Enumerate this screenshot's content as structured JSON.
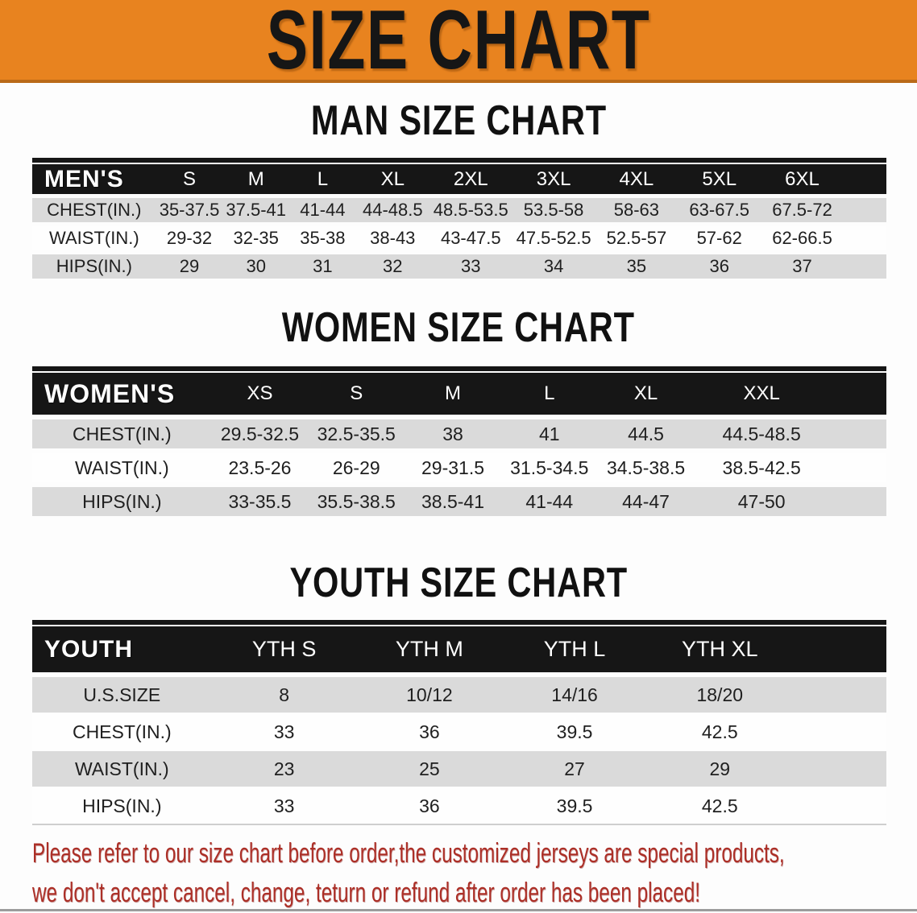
{
  "banner": {
    "title": "SIZE CHART"
  },
  "sections": [
    {
      "heading": "MAN SIZE CHART",
      "table": {
        "header": {
          "label": "MEN'S",
          "columns": [
            "S",
            "M",
            "L",
            "XL",
            "2XL",
            "3XL",
            "4XL",
            "5XL",
            "6XL"
          ]
        },
        "rows": [
          {
            "label": "CHEST(IN.)",
            "shaded": true,
            "values": [
              "35-37.5",
              "37.5-41",
              "41-44",
              "44-48.5",
              "48.5-53.5",
              "53.5-58",
              "58-63",
              "63-67.5",
              "67.5-72"
            ]
          },
          {
            "label": "WAIST(IN.)",
            "shaded": false,
            "values": [
              "29-32",
              "32-35",
              "35-38",
              "38-43",
              "43-47.5",
              "47.5-52.5",
              "52.5-57",
              "57-62",
              "62-66.5"
            ]
          },
          {
            "label": "HIPS(IN.)",
            "shaded": true,
            "values": [
              "29",
              "30",
              "31",
              "32",
              "33",
              "34",
              "35",
              "36",
              "37"
            ]
          }
        ]
      }
    },
    {
      "heading": "WOMEN SIZE CHART",
      "table": {
        "header": {
          "label": "WOMEN'S",
          "columns": [
            "XS",
            "S",
            "M",
            "L",
            "XL",
            "XXL"
          ]
        },
        "rows": [
          {
            "label": "CHEST(IN.)",
            "shaded": true,
            "values": [
              "29.5-32.5",
              "32.5-35.5",
              "38",
              "41",
              "44.5",
              "44.5-48.5"
            ]
          },
          {
            "label": "WAIST(IN.)",
            "shaded": false,
            "values": [
              "23.5-26",
              "26-29",
              "29-31.5",
              "31.5-34.5",
              "34.5-38.5",
              "38.5-42.5"
            ]
          },
          {
            "label": "HIPS(IN.)",
            "shaded": true,
            "values": [
              "33-35.5",
              "35.5-38.5",
              "38.5-41",
              "41-44",
              "44-47",
              "47-50"
            ]
          }
        ]
      }
    },
    {
      "heading": "YOUTH SIZE CHART",
      "table": {
        "header": {
          "label": "YOUTH",
          "columns": [
            "YTH S",
            "YTH M",
            "YTH L",
            "YTH XL"
          ]
        },
        "rows": [
          {
            "label": "U.S.SIZE",
            "shaded": true,
            "values": [
              "8",
              "10/12",
              "14/16",
              "18/20"
            ]
          },
          {
            "label": "CHEST(IN.)",
            "shaded": false,
            "values": [
              "33",
              "36",
              "39.5",
              "42.5"
            ]
          },
          {
            "label": "WAIST(IN.)",
            "shaded": true,
            "values": [
              "23",
              "25",
              "27",
              "29"
            ]
          },
          {
            "label": "HIPS(IN.)",
            "shaded": false,
            "values": [
              "33",
              "36",
              "39.5",
              "42.5"
            ]
          }
        ]
      }
    }
  ],
  "footer": {
    "lines": [
      "Please refer to our size chart before order,the customized jerseys are special products,",
      "we don't accept cancel, change, teturn or refund after order has been placed!"
    ]
  },
  "colors": {
    "banner_bg": "#E8831F",
    "banner_border": "#BA6A18",
    "header_bar_bg": "#161616",
    "header_bar_text": "#FFFFFF",
    "row_shaded_bg": "#DADADA",
    "footer_text": "#AC2F27"
  }
}
